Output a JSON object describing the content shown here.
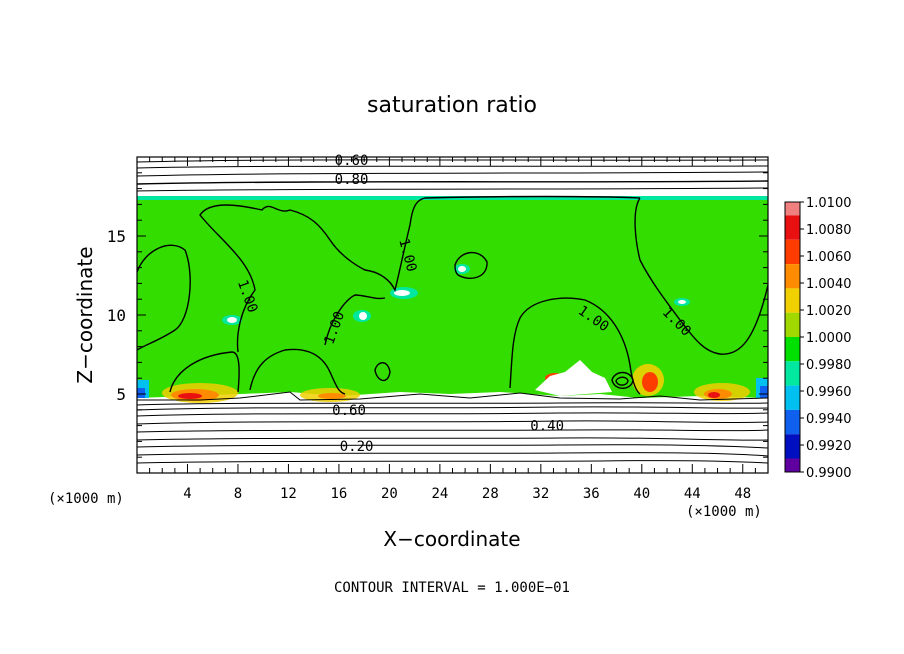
{
  "chart_data": {
    "type": "heatmap",
    "title": "saturation ratio",
    "xlabel": "X−coordinate",
    "ylabel": "Z−coordinate",
    "x_unit": "(×1000 m)",
    "y_unit": "(×1000 m)",
    "xlim": [
      0,
      50
    ],
    "ylim": [
      0,
      20
    ],
    "x_ticks": [
      "4",
      "8",
      "12",
      "16",
      "20",
      "24",
      "28",
      "32",
      "36",
      "40",
      "44",
      "48"
    ],
    "y_ticks": [
      "5",
      "10",
      "15"
    ],
    "footer": "CONTOUR INTERVAL = 1.000E−01",
    "colorbar": {
      "levels": [
        "1.0100",
        "1.0080",
        "1.0060",
        "1.0040",
        "1.0020",
        "1.0000",
        "0.9980",
        "0.9960",
        "0.9940",
        "0.9920",
        "0.9900"
      ],
      "colors": [
        "#f08080",
        "#e81010",
        "#ff3c00",
        "#ff8c00",
        "#f0d000",
        "#a0d800",
        "#00e000",
        "#00e8a0",
        "#00c0f0",
        "#1060f0",
        "#0010c0",
        "#6000a0"
      ]
    },
    "contour_labels": [
      {
        "text": "0.60",
        "x": 17.0,
        "z": 19.8
      },
      {
        "text": "0.80",
        "x": 17.0,
        "z": 18.6
      },
      {
        "text": "1.00",
        "x": 21.5,
        "z": 13.8
      },
      {
        "text": "1.00",
        "x": 8.8,
        "z": 11.2
      },
      {
        "text": "1.00",
        "x": 15.6,
        "z": 9.2
      },
      {
        "text": "1.00",
        "x": 36.2,
        "z": 9.8
      },
      {
        "text": "1.00",
        "x": 42.8,
        "z": 9.6
      },
      {
        "text": "0.60",
        "x": 16.8,
        "z": 4.0
      },
      {
        "text": "0.40",
        "x": 32.5,
        "z": 3.0
      },
      {
        "text": "0.20",
        "x": 17.4,
        "z": 1.7
      }
    ],
    "colors": {
      "saturated": "#33dd00",
      "subsaturated": "#ffffff",
      "contour": "#000000"
    }
  }
}
